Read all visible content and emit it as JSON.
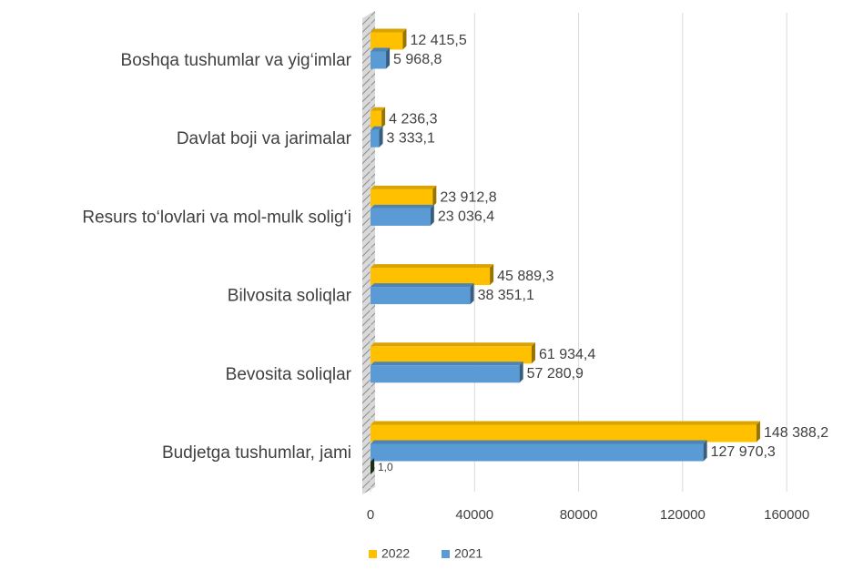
{
  "chart_data": {
    "type": "bar",
    "orientation": "horizontal",
    "categories": [
      "Boshqa tushumlar va yig‘imlar",
      "Davlat boji va jarimalar",
      "Resurs to‘lovlari va mol-mulk solig‘i",
      "Bilvosita soliqlar",
      "Bevosita soliqlar",
      "Budjetga tushumlar, jami"
    ],
    "series": [
      {
        "name": "2022",
        "color": "#ffc000",
        "values": [
          12415.5,
          4236.3,
          23912.8,
          45889.3,
          61934.4,
          148388.2
        ],
        "value_labels": [
          "12 415,5",
          "4 236,3",
          "23 912,8",
          "45 889,3",
          "61 934,4",
          "148 388,2"
        ]
      },
      {
        "name": "2021",
        "color": "#5b9bd5",
        "values": [
          5968.8,
          3333.1,
          23036.4,
          38351.1,
          57280.9,
          127970.3
        ],
        "value_labels": [
          "5 968,8",
          "3 333,1",
          "23 036,4",
          "38 351,1",
          "57 280,9",
          "127 970,3"
        ]
      }
    ],
    "extra_bar": {
      "category_index": 5,
      "value": 1,
      "value_label": "1,0",
      "color": "#2e4d23"
    },
    "xlim": [
      0,
      168000
    ],
    "xticks": [
      0,
      40000,
      80000,
      120000,
      160000
    ],
    "grid": true,
    "legend": "bottom"
  }
}
